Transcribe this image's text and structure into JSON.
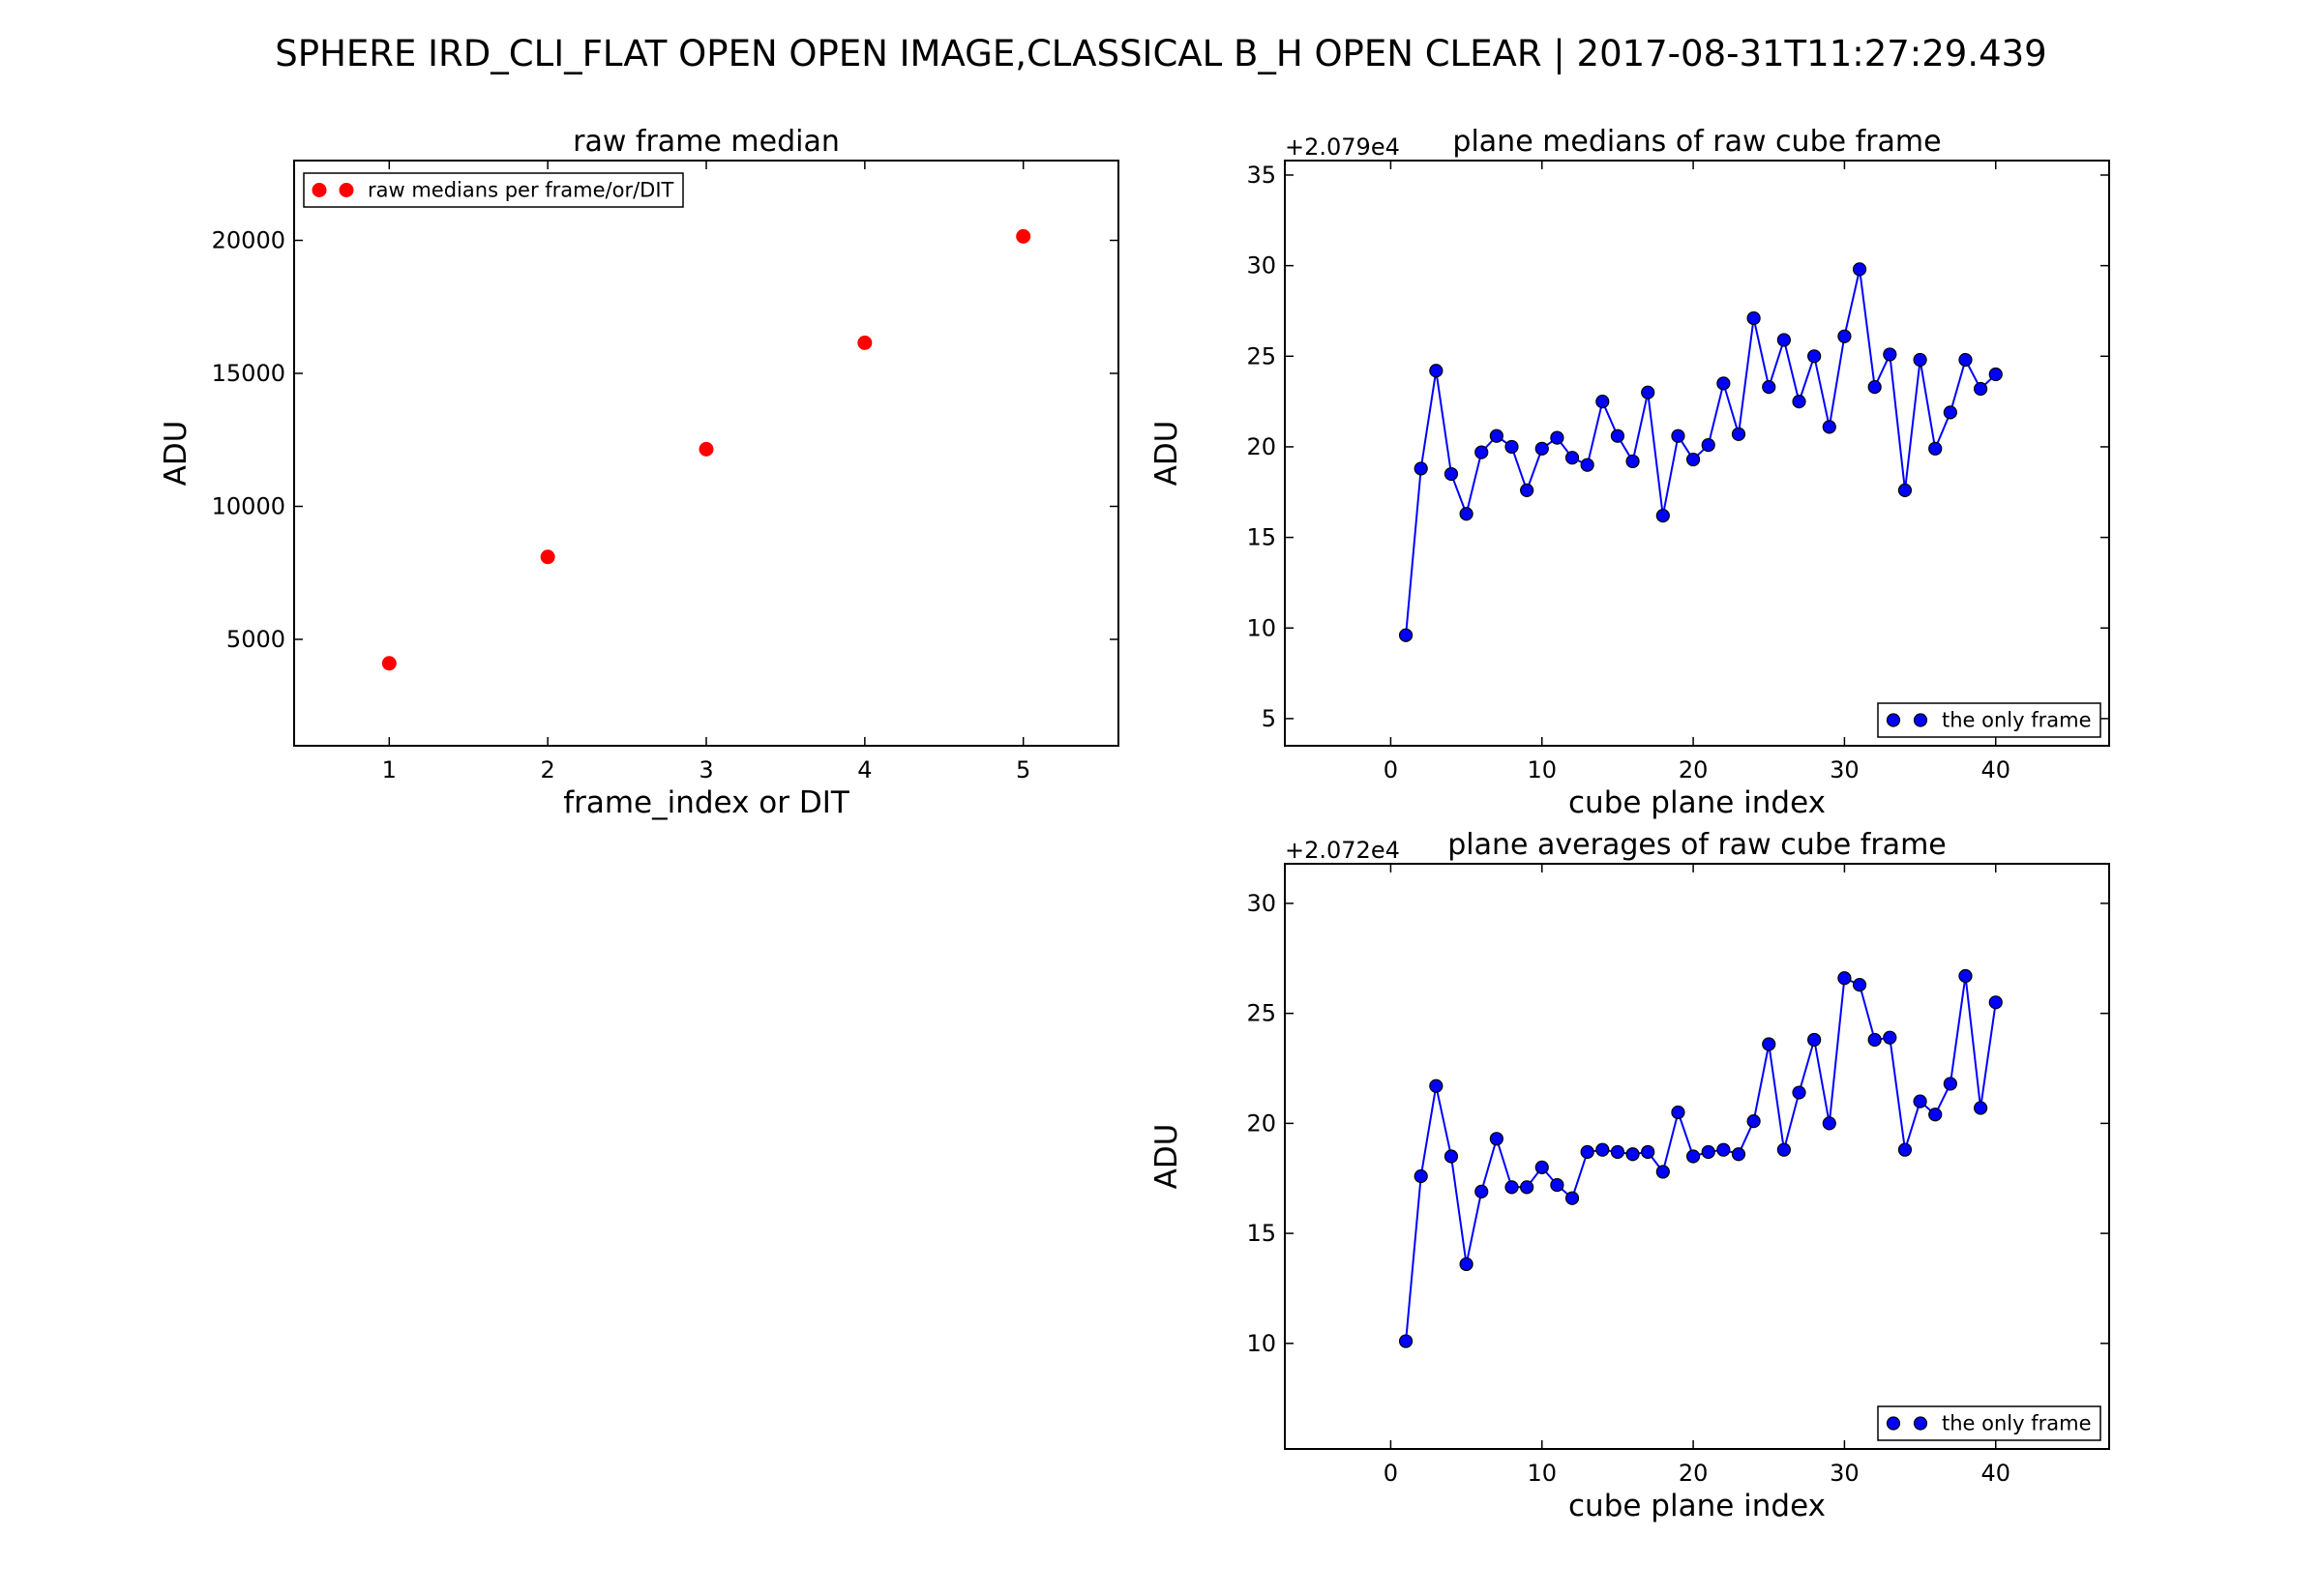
{
  "figure": {
    "suptitle": "SPHERE IRD_CLI_FLAT   OPEN  OPEN  IMAGE,CLASSICAL  B_H  OPEN  CLEAR  |  2017-08-31T11:27:29.439"
  },
  "chart_data": [
    {
      "type": "scatter",
      "title": "raw frame median",
      "xlabel": "frame_index or DIT",
      "ylabel": "ADU",
      "xlim": [
        0.4,
        5.6
      ],
      "ylim": [
        1000,
        23000
      ],
      "xticks": [
        1,
        2,
        3,
        4,
        5
      ],
      "yticks": [
        5000,
        10000,
        15000,
        20000
      ],
      "offset_text": "",
      "legend": {
        "placement": "upper-left",
        "entries": [
          "raw medians per frame/or/DIT"
        ]
      },
      "colors": {
        "marker": "#ff0000"
      },
      "series": [
        {
          "name": "raw medians per frame/or/DIT",
          "marker": "circle",
          "line": false,
          "x": [
            1,
            2,
            3,
            4,
            5
          ],
          "y": [
            4100,
            8100,
            12150,
            16150,
            20150
          ]
        }
      ]
    },
    {
      "type": "line",
      "title": "plane medians of raw cube frame",
      "xlabel": "cube plane index",
      "ylabel": "ADU",
      "xlim": [
        -7,
        47.5
      ],
      "ylim": [
        3.5,
        35.8
      ],
      "xticks": [
        0,
        10,
        20,
        30,
        40
      ],
      "yticks": [
        5,
        10,
        15,
        20,
        25,
        30,
        35
      ],
      "offset_text": "+2.079e4",
      "legend": {
        "placement": "lower-right",
        "entries": [
          "the only frame"
        ]
      },
      "colors": {
        "marker": "#0000ff",
        "line": "#0000ff"
      },
      "series": [
        {
          "name": "the only frame",
          "marker": "circle",
          "line": true,
          "x": [
            1,
            2,
            3,
            4,
            5,
            6,
            7,
            8,
            9,
            10,
            11,
            12,
            13,
            14,
            15,
            16,
            17,
            18,
            19,
            20,
            21,
            22,
            23,
            24,
            25,
            26,
            27,
            28,
            29,
            30,
            31,
            32,
            33,
            34,
            35,
            36,
            37,
            38,
            39,
            40
          ],
          "y": [
            9.6,
            18.8,
            24.2,
            18.5,
            16.3,
            19.7,
            20.6,
            20.0,
            17.6,
            19.9,
            20.5,
            19.4,
            19.0,
            22.5,
            20.6,
            19.2,
            23.0,
            16.2,
            20.6,
            19.3,
            20.1,
            23.5,
            20.7,
            27.1,
            23.3,
            25.9,
            22.5,
            25.0,
            21.1,
            26.1,
            29.8,
            23.3,
            25.1,
            17.6,
            24.8,
            19.9,
            21.9,
            24.8,
            23.2,
            24.0
          ]
        }
      ]
    },
    {
      "type": "line",
      "title": "plane averages of raw cube frame",
      "xlabel": "cube plane index",
      "ylabel": "ADU",
      "xlim": [
        -7,
        47.5
      ],
      "ylim": [
        5.2,
        31.8
      ],
      "xticks": [
        0,
        10,
        20,
        30,
        40
      ],
      "yticks": [
        10,
        15,
        20,
        25,
        30
      ],
      "offset_text": "+2.072e4",
      "legend": {
        "placement": "lower-right",
        "entries": [
          "the only frame"
        ]
      },
      "colors": {
        "marker": "#0000ff",
        "line": "#0000ff"
      },
      "series": [
        {
          "name": "the only frame",
          "marker": "circle",
          "line": true,
          "x": [
            1,
            2,
            3,
            4,
            5,
            6,
            7,
            8,
            9,
            10,
            11,
            12,
            13,
            14,
            15,
            16,
            17,
            18,
            19,
            20,
            21,
            22,
            23,
            24,
            25,
            26,
            27,
            28,
            29,
            30,
            31,
            32,
            33,
            34,
            35,
            36,
            37,
            38,
            39,
            40
          ],
          "y": [
            10.1,
            17.6,
            21.7,
            18.5,
            13.6,
            16.9,
            19.3,
            17.1,
            17.1,
            18.0,
            17.2,
            16.6,
            18.7,
            18.8,
            18.7,
            18.6,
            18.7,
            17.8,
            20.5,
            18.5,
            18.7,
            18.8,
            18.6,
            20.1,
            23.6,
            18.8,
            21.4,
            23.8,
            20.0,
            26.6,
            26.3,
            23.8,
            23.9,
            18.8,
            21.0,
            20.4,
            21.8,
            26.7,
            20.7,
            25.5
          ]
        }
      ]
    }
  ]
}
